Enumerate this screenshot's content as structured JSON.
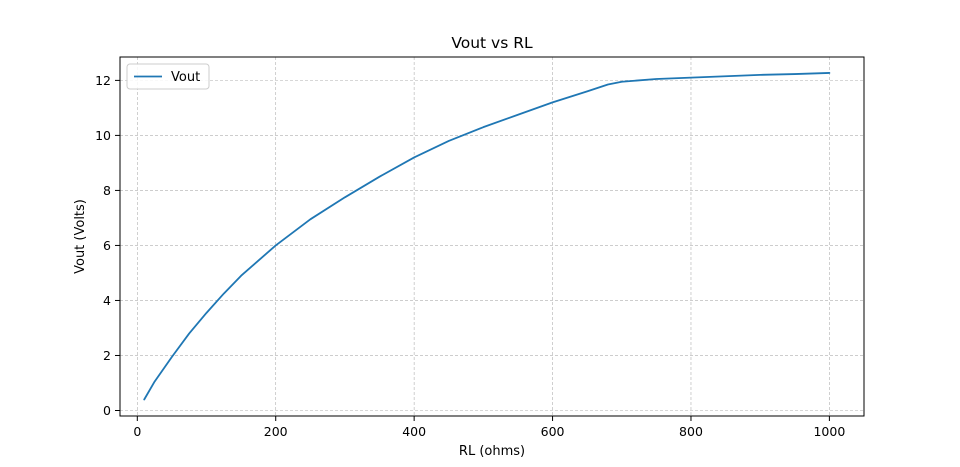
{
  "chart_data": {
    "type": "line",
    "title": "Vout vs RL",
    "xlabel": "RL (ohms)",
    "ylabel": "Vout (Volts)",
    "xlim": [
      -25,
      1050
    ],
    "ylim": [
      -0.2,
      12.85
    ],
    "x_ticks": [
      0,
      200,
      400,
      600,
      800,
      1000
    ],
    "x_tick_labels": [
      "0",
      "200",
      "400",
      "600",
      "800",
      "1000"
    ],
    "y_ticks": [
      0,
      2,
      4,
      6,
      8,
      10,
      12
    ],
    "y_tick_labels": [
      "0",
      "2",
      "4",
      "6",
      "8",
      "10",
      "12"
    ],
    "grid": true,
    "legend_position": "upper-left",
    "colors": {
      "series": "#1f77b4",
      "grid": "#b0b0b0",
      "frame": "#000000",
      "legend_border": "#cccccc"
    },
    "series": [
      {
        "name": "Vout",
        "x": [
          10,
          25,
          50,
          75,
          100,
          125,
          150,
          175,
          200,
          250,
          300,
          350,
          400,
          450,
          500,
          550,
          600,
          650,
          680,
          700,
          750,
          800,
          850,
          900,
          950,
          1000
        ],
        "y": [
          0.4,
          1.05,
          1.95,
          2.8,
          3.55,
          4.25,
          4.9,
          5.45,
          6.0,
          6.95,
          7.75,
          8.5,
          9.2,
          9.8,
          10.3,
          10.75,
          11.2,
          11.6,
          11.85,
          11.95,
          12.05,
          12.1,
          12.15,
          12.2,
          12.23,
          12.27
        ]
      }
    ]
  }
}
